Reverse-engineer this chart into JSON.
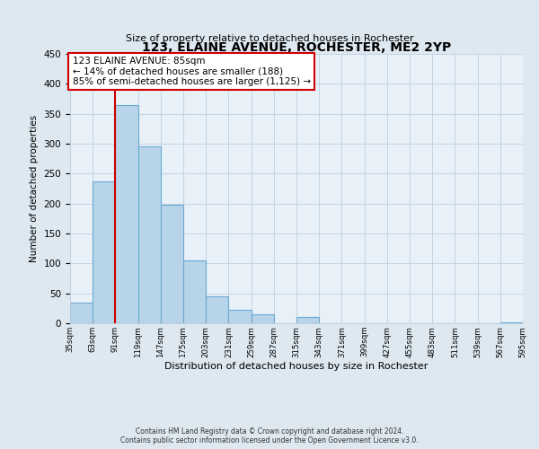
{
  "title": "123, ELAINE AVENUE, ROCHESTER, ME2 2YP",
  "subtitle": "Size of property relative to detached houses in Rochester",
  "xlabel": "Distribution of detached houses by size in Rochester",
  "ylabel": "Number of detached properties",
  "bins": [
    35,
    63,
    91,
    119,
    147,
    175,
    203,
    231,
    259,
    287,
    315,
    343,
    371,
    399,
    427,
    455,
    483,
    511,
    539,
    567,
    595
  ],
  "bin_labels": [
    "35sqm",
    "63sqm",
    "91sqm",
    "119sqm",
    "147sqm",
    "175sqm",
    "203sqm",
    "231sqm",
    "259sqm",
    "287sqm",
    "315sqm",
    "343sqm",
    "371sqm",
    "399sqm",
    "427sqm",
    "455sqm",
    "483sqm",
    "511sqm",
    "539sqm",
    "567sqm",
    "595sqm"
  ],
  "values": [
    35,
    237,
    365,
    295,
    198,
    105,
    45,
    22,
    15,
    0,
    10,
    0,
    0,
    0,
    0,
    0,
    0,
    0,
    0,
    2
  ],
  "bar_color": "#b8d4e8",
  "bar_edge_color": "#6aaad4",
  "property_line_x": 91,
  "property_line_color": "#cc0000",
  "annotation_title": "123 ELAINE AVENUE: 85sqm",
  "annotation_line1": "← 14% of detached houses are smaller (188)",
  "annotation_line2": "85% of semi-detached houses are larger (1,125) →",
  "annotation_box_color": "#ffffff",
  "annotation_box_edge_color": "#cc0000",
  "ylim": [
    0,
    450
  ],
  "yticks": [
    0,
    50,
    100,
    150,
    200,
    250,
    300,
    350,
    400,
    450
  ],
  "footer_line1": "Contains HM Land Registry data © Crown copyright and database right 2024.",
  "footer_line2": "Contains public sector information licensed under the Open Government Licence v3.0.",
  "bg_color": "#dde8f0",
  "plot_bg_color": "#e8f0f8"
}
